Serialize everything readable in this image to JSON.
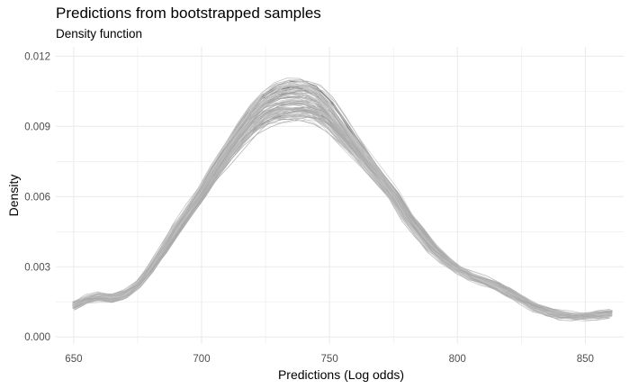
{
  "chart_data": {
    "type": "line",
    "title": "Predictions from bootstrapped samples",
    "subtitle": "Density function",
    "xlabel": "Predictions (Log odds)",
    "ylabel": "Density",
    "xlim": [
      643,
      865
    ],
    "ylim": [
      -0.0003,
      0.0124
    ],
    "x_ticks": [
      650,
      700,
      750,
      800,
      850
    ],
    "x_tick_labels": [
      "650",
      "700",
      "750",
      "800",
      "850"
    ],
    "y_ticks": [
      0.0,
      0.003,
      0.006,
      0.009,
      0.012
    ],
    "y_tick_labels": [
      "0.000",
      "0.003",
      "0.006",
      "0.009",
      "0.012"
    ],
    "grid": true,
    "n_curves": 100,
    "line_colors": [
      "#c9c9c9",
      "#b8b8b8",
      "#a8a8a8",
      "#8e8e8e",
      "#5c5c5c"
    ],
    "grid_color": "#ebebeb",
    "x": [
      650,
      655,
      660,
      665,
      670,
      675,
      680,
      685,
      690,
      695,
      700,
      705,
      710,
      715,
      720,
      725,
      730,
      735,
      740,
      745,
      750,
      755,
      760,
      765,
      770,
      775,
      780,
      785,
      790,
      795,
      800,
      805,
      810,
      815,
      820,
      825,
      830,
      835,
      840,
      845,
      850,
      855,
      860
    ],
    "series": [
      {
        "values": [
          0.00135,
          0.0016,
          0.0017,
          0.00165,
          0.0018,
          0.0022,
          0.0029,
          0.0037,
          0.0046,
          0.0054,
          0.0062,
          0.0071,
          0.0079,
          0.0087,
          0.0094,
          0.0099,
          0.0102,
          0.0103,
          0.0103,
          0.0101,
          0.0096,
          0.0089,
          0.0082,
          0.0075,
          0.0068,
          0.0061,
          0.0052,
          0.0045,
          0.0038,
          0.0033,
          0.0029,
          0.0026,
          0.0024,
          0.0022,
          0.0019,
          0.0016,
          0.0013,
          0.0011,
          0.00095,
          0.0009,
          0.0009,
          0.00095,
          0.001
        ]
      }
    ]
  }
}
